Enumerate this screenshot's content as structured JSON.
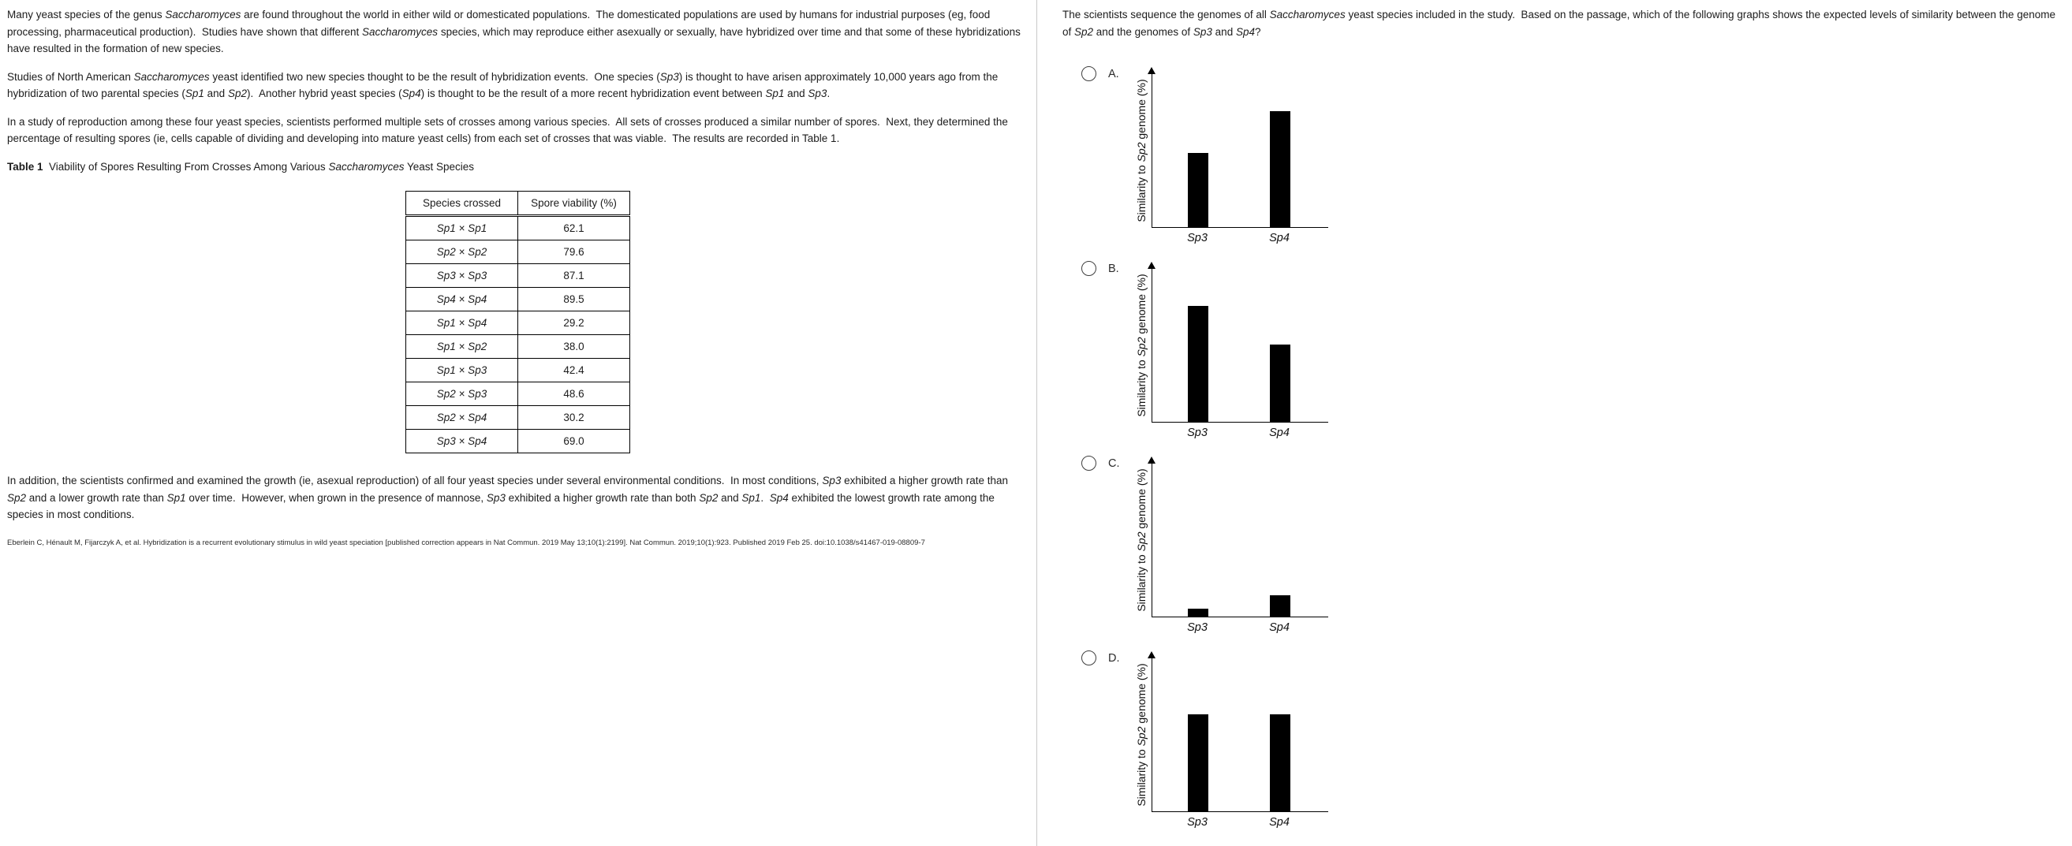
{
  "passage": {
    "paragraphs": [
      [
        {
          "t": "Many yeast species of the genus "
        },
        {
          "t": "Saccharomyces",
          "i": true
        },
        {
          "t": " are found throughout the world in either wild or domesticated populations.  The domesticated populations are used by humans for industrial purposes (eg, food processing, pharmaceutical production).  Studies have shown that different "
        },
        {
          "t": "Saccharomyces",
          "i": true
        },
        {
          "t": " species, which may reproduce either asexually or sexually, have hybridized over time and that some of these hybridizations have resulted in the formation of new species."
        }
      ],
      [
        {
          "t": "Studies of North American "
        },
        {
          "t": "Saccharomyces",
          "i": true
        },
        {
          "t": " yeast identified two new species thought to be the result of hybridization events.  One species ("
        },
        {
          "t": "Sp3",
          "i": true
        },
        {
          "t": ") is thought to have arisen approximately 10,000 years ago from the hybridization of two parental species ("
        },
        {
          "t": "Sp1",
          "i": true
        },
        {
          "t": " and "
        },
        {
          "t": "Sp2",
          "i": true
        },
        {
          "t": ").  Another hybrid yeast species ("
        },
        {
          "t": "Sp4",
          "i": true
        },
        {
          "t": ") is thought to be the result of a more recent hybridization event between "
        },
        {
          "t": "Sp1",
          "i": true
        },
        {
          "t": " and "
        },
        {
          "t": "Sp3",
          "i": true
        },
        {
          "t": "."
        }
      ],
      [
        {
          "t": "In a study of reproduction among these four yeast species, scientists performed multiple sets of crosses among various species.  All sets of crosses produced a similar number of spores.  Next, they determined the percentage of resulting spores (ie, cells capable of dividing and developing into mature yeast cells) from each set of crosses that was viable.  The results are recorded in Table 1."
        }
      ],
      [
        {
          "t": "In addition, the scientists confirmed and examined the growth (ie, asexual reproduction) of all four yeast species under several environmental conditions.  In most conditions, "
        },
        {
          "t": "Sp3",
          "i": true
        },
        {
          "t": " exhibited a higher growth rate than "
        },
        {
          "t": "Sp2",
          "i": true
        },
        {
          "t": " and a lower growth rate than "
        },
        {
          "t": "Sp1",
          "i": true
        },
        {
          "t": " over time.  However, when grown in the presence of mannose, "
        },
        {
          "t": "Sp3",
          "i": true
        },
        {
          "t": " exhibited a higher growth rate than both "
        },
        {
          "t": "Sp2",
          "i": true
        },
        {
          "t": " and "
        },
        {
          "t": "Sp1",
          "i": true
        },
        {
          "t": ".  "
        },
        {
          "t": "Sp4",
          "i": true
        },
        {
          "t": " exhibited the lowest growth rate among the species in most conditions."
        }
      ]
    ],
    "table_caption": [
      {
        "t": "Table 1",
        "b": true
      },
      {
        "t": "  Viability of Spores Resulting From Crosses Among Various "
      },
      {
        "t": "Saccharomyces",
        "i": true
      },
      {
        "t": " Yeast Species"
      }
    ],
    "table": {
      "headers": [
        "Species crossed",
        "Spore viability (%)"
      ],
      "rows": [
        {
          "cross": "Sp1 × Sp1",
          "viability": "62.1"
        },
        {
          "cross": "Sp2 × Sp2",
          "viability": "79.6"
        },
        {
          "cross": "Sp3 × Sp3",
          "viability": "87.1"
        },
        {
          "cross": "Sp4 × Sp4",
          "viability": "89.5"
        },
        {
          "cross": "Sp1 × Sp4",
          "viability": "29.2"
        },
        {
          "cross": "Sp1 × Sp2",
          "viability": "38.0"
        },
        {
          "cross": "Sp1 × Sp3",
          "viability": "42.4"
        },
        {
          "cross": "Sp2 × Sp3",
          "viability": "48.6"
        },
        {
          "cross": "Sp2 × Sp4",
          "viability": "30.2"
        },
        {
          "cross": "Sp3 × Sp4",
          "viability": "69.0"
        }
      ]
    },
    "citation": "Eberlein C, Hénault M, Fijarczyk A, et al. Hybridization is a recurrent evolutionary stimulus in wild yeast speciation [published correction appears in Nat Commun. 2019 May 13;10(1):2199]. Nat Commun. 2019;10(1):923. Published 2019 Feb 25. doi:10.1038/s41467-019-08809-7"
  },
  "question": {
    "text": [
      {
        "t": "The scientists sequence the genomes of all "
      },
      {
        "t": "Saccharomyces",
        "i": true
      },
      {
        "t": " yeast species included in the study.  Based on the passage, which of the following graphs shows the expected levels of similarity between the genome of "
      },
      {
        "t": "Sp2",
        "i": true
      },
      {
        "t": " and the genomes of "
      },
      {
        "t": "Sp3",
        "i": true
      },
      {
        "t": " and "
      },
      {
        "t": "Sp4",
        "i": true
      },
      {
        "t": "?"
      }
    ],
    "options": [
      {
        "letter": "A."
      },
      {
        "letter": "B."
      },
      {
        "letter": "C."
      },
      {
        "letter": "D."
      }
    ]
  },
  "charts": {
    "ylabel_rich": [
      {
        "t": "Similarity to "
      },
      {
        "t": "Sp2",
        "i": true
      },
      {
        "t": " genome (%)"
      }
    ]
  },
  "chart_data": [
    {
      "type": "bar",
      "title": "Option A",
      "categories": [
        "Sp3",
        "Sp4"
      ],
      "values": [
        48,
        75
      ],
      "ylabel": "Similarity to Sp2 genome (%)",
      "xlabel": "",
      "ylim": [
        0,
        100
      ],
      "value_units": "relative bar height, % of unlabeled axis",
      "grid": false,
      "legend": false
    },
    {
      "type": "bar",
      "title": "Option B",
      "categories": [
        "Sp3",
        "Sp4"
      ],
      "values": [
        75,
        50
      ],
      "ylabel": "Similarity to Sp2 genome (%)",
      "xlabel": "",
      "ylim": [
        0,
        100
      ],
      "value_units": "relative bar height, % of unlabeled axis",
      "grid": false,
      "legend": false
    },
    {
      "type": "bar",
      "title": "Option C",
      "categories": [
        "Sp3",
        "Sp4"
      ],
      "values": [
        5,
        14
      ],
      "ylabel": "Similarity to Sp2 genome (%)",
      "xlabel": "",
      "ylim": [
        0,
        100
      ],
      "value_units": "relative bar height, % of unlabeled axis",
      "grid": false,
      "legend": false
    },
    {
      "type": "bar",
      "title": "Option D",
      "categories": [
        "Sp3",
        "Sp4"
      ],
      "values": [
        63,
        63
      ],
      "ylabel": "Similarity to Sp2 genome (%)",
      "xlabel": "",
      "ylim": [
        0,
        100
      ],
      "value_units": "relative bar height, % of unlabeled axis",
      "grid": false,
      "legend": false
    }
  ]
}
